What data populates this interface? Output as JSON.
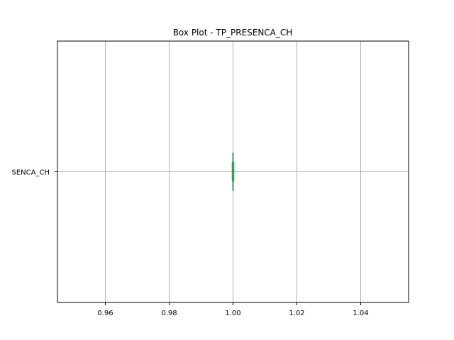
{
  "chart_data": {
    "type": "box",
    "orientation": "horizontal",
    "title": "Box Plot - TP_PRESENCA_CH",
    "xlabel": "",
    "ylabel": "",
    "xlim": [
      0.945,
      1.055
    ],
    "x_ticks": [
      0.96,
      0.98,
      1.0,
      1.02,
      1.04
    ],
    "x_tick_labels": [
      "0.96",
      "0.98",
      "1.00",
      "1.02",
      "1.04"
    ],
    "categories": [
      "TP_PRESENCA_CH"
    ],
    "category_label_visible": "SENCA_CH",
    "boxes": [
      {
        "category": "TP_PRESENCA_CH",
        "min": 1.0,
        "q1": 1.0,
        "median": 1.0,
        "q3": 1.0,
        "max": 1.0
      }
    ],
    "grid": true,
    "colors": {
      "box": "#3a9a5c",
      "grid": "#b0b0b0",
      "axis": "#000000"
    }
  }
}
